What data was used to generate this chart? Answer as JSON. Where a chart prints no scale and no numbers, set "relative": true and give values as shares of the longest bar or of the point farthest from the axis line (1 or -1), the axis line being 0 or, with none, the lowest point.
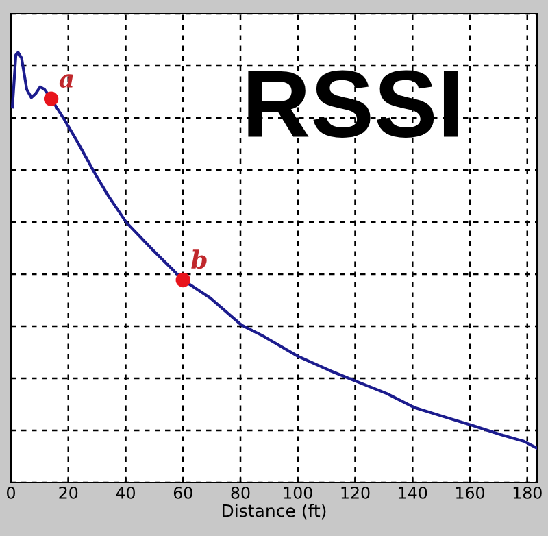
{
  "chart_data": {
    "type": "line",
    "title": "RSSI",
    "xlabel": "Distance (ft)",
    "relative": true,
    "xlim": [
      0,
      183.4
    ],
    "xticks": [
      0,
      20,
      40,
      60,
      80,
      100,
      120,
      140,
      160,
      180
    ],
    "grid": true,
    "series": [
      {
        "color": "#1c1c8e",
        "line_style": "solid",
        "marker": "none",
        "x": [
          0.5,
          1.7,
          2.5,
          3.7,
          5.5,
          7.1,
          8.6,
          10.2,
          11.7,
          14,
          18.6,
          23.1,
          29.4,
          34,
          40.2,
          49.4,
          60,
          69.3,
          80.4,
          87.8,
          100.2,
          110.9,
          120.1,
          131,
          140.4,
          152.4,
          160.3,
          170.9,
          178.8,
          183.4
        ],
        "values": [
          0.873,
          0.994,
          1.0,
          0.987,
          0.914,
          0.895,
          0.904,
          0.92,
          0.914,
          0.892,
          0.844,
          0.793,
          0.717,
          0.666,
          0.605,
          0.541,
          0.471,
          0.43,
          0.366,
          0.341,
          0.293,
          0.261,
          0.236,
          0.207,
          0.175,
          0.15,
          0.134,
          0.111,
          0.096,
          0.08
        ]
      },
      {
        "type": "scatter",
        "color": "#e8141c",
        "marker": "circle",
        "x": [
          14,
          60
        ],
        "values": [
          0.892,
          0.471
        ]
      }
    ],
    "annotations": [
      {
        "text": "a",
        "x": 14,
        "y": 0.892
      },
      {
        "text": "b",
        "x": 60,
        "y": 0.471
      }
    ]
  }
}
